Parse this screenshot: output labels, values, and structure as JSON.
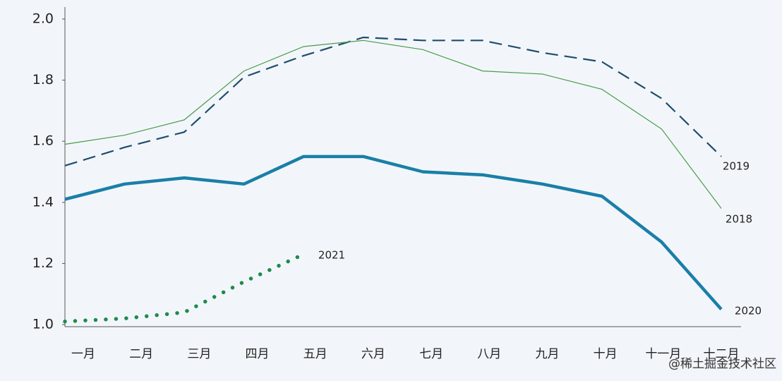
{
  "chart_data": {
    "type": "line",
    "categories": [
      "一月",
      "二月",
      "三月",
      "四月",
      "五月",
      "六月",
      "七月",
      "八月",
      "九月",
      "十月",
      "十一月",
      "十二月"
    ],
    "series": [
      {
        "name": "2019",
        "color": "#1f4e6e",
        "style": "dashed",
        "values": [
          1.52,
          1.58,
          1.63,
          1.81,
          1.88,
          1.94,
          1.93,
          1.93,
          1.89,
          1.86,
          1.74,
          1.55
        ]
      },
      {
        "name": "2018",
        "color": "#4a9a4a",
        "style": "thin",
        "values": [
          1.59,
          1.62,
          1.67,
          1.83,
          1.91,
          1.93,
          1.9,
          1.83,
          1.82,
          1.77,
          1.64,
          1.38
        ]
      },
      {
        "name": "2020",
        "color": "#1a7fa8",
        "style": "thick",
        "values": [
          1.41,
          1.46,
          1.48,
          1.46,
          1.55,
          1.55,
          1.5,
          1.49,
          1.46,
          1.42,
          1.27,
          1.05
        ]
      },
      {
        "name": "2021",
        "color": "#1f8a4a",
        "style": "dotted",
        "values": [
          1.01,
          1.02,
          1.04,
          1.14,
          1.23,
          null,
          null,
          null,
          null,
          null,
          null,
          null
        ]
      }
    ],
    "ylim": [
      1.0,
      2.0
    ],
    "yticks": [
      {
        "value": 1.0,
        "label": "1.0"
      },
      1.2,
      1.4,
      1.6,
      1.8,
      {
        "value": 2.0,
        "label": "2.0"
      }
    ],
    "watermark": "@稀土掘金技术社区"
  }
}
